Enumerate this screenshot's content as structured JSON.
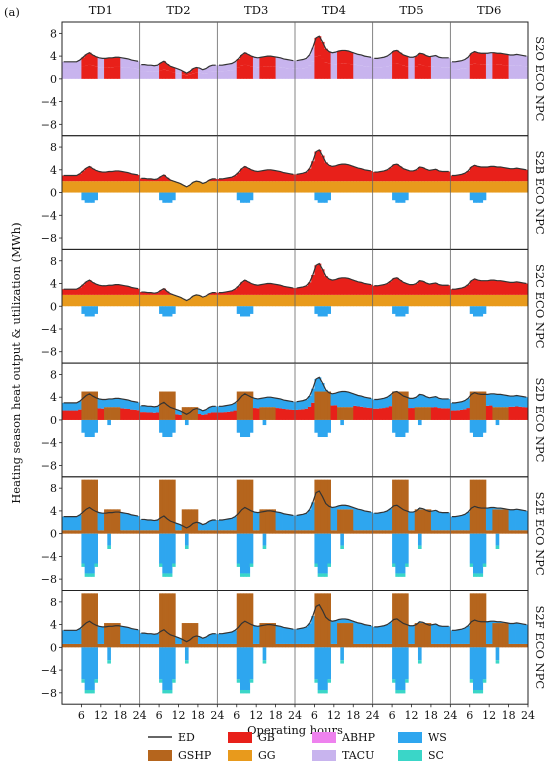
{
  "chart_data": {
    "type": "area",
    "panel_label": "(a)",
    "ylabel": "Heating season heat output & utilization (MWh)",
    "xlabel": "Operating hours",
    "day_labels": [
      "TD1",
      "TD2",
      "TD3",
      "TD4",
      "TD5",
      "TD6"
    ],
    "row_labels": [
      "S2O ECO NPC",
      "S2B ECO NPC",
      "S2C ECO NPC",
      "S2D ECO NPC",
      "S2E ECO NPC",
      "S2F ECO NPC"
    ],
    "x_ticks": [
      "6",
      "12",
      "18",
      "24",
      "6",
      "12",
      "18",
      "24",
      "6",
      "12",
      "18",
      "24",
      "6",
      "12",
      "18",
      "24",
      "6",
      "12",
      "18",
      "24",
      "6",
      "12",
      "18",
      "24"
    ],
    "y_ticks": [
      "8",
      "4",
      "0",
      "−4",
      "−8"
    ],
    "ylim": [
      -10,
      10
    ],
    "hours_per_day": 24,
    "legend": [
      {
        "key": "ED",
        "label": "ED",
        "color": "#333333",
        "kind": "line"
      },
      {
        "key": "GSHP",
        "label": "GSHP",
        "color": "#b5651d",
        "kind": "box"
      },
      {
        "key": "GB",
        "label": "GB",
        "color": "#e8201a",
        "kind": "box"
      },
      {
        "key": "GG",
        "label": "GG",
        "color": "#e89a1c",
        "kind": "box"
      },
      {
        "key": "ABHP",
        "label": "ABHP",
        "color": "#ee82ee",
        "kind": "box"
      },
      {
        "key": "TACU",
        "label": "TACU",
        "color": "#c8b4ee",
        "kind": "box"
      },
      {
        "key": "WS",
        "label": "WS",
        "color": "#2ea6ef",
        "kind": "box"
      },
      {
        "key": "SC",
        "label": "SC",
        "color": "#3ad6c8",
        "kind": "box"
      }
    ],
    "ed_by_day": [
      [
        3,
        3,
        3,
        3,
        3,
        3.3,
        3.8,
        4.3,
        4.6,
        4.2,
        3.9,
        3.7,
        3.6,
        3.6,
        3.7,
        3.7,
        3.8,
        3.8,
        3.7,
        3.6,
        3.5,
        3.3,
        3.2,
        3.1
      ],
      [
        2.5,
        2.5,
        2.4,
        2.4,
        2.3,
        2.4,
        2.8,
        3.1,
        2.6,
        2.2,
        2.0,
        1.8,
        1.6,
        1.3,
        1.0,
        1.3,
        1.8,
        2.0,
        1.9,
        1.6,
        1.8,
        2.2,
        2.4,
        2.4
      ],
      [
        2.4,
        2.4,
        2.5,
        2.6,
        2.7,
        3.0,
        3.5,
        4.2,
        4.6,
        4.3,
        4.0,
        3.8,
        3.7,
        3.8,
        3.9,
        4.0,
        4.0,
        3.9,
        3.8,
        3.7,
        3.5,
        3.4,
        3.3,
        3.2
      ],
      [
        3.2,
        3.3,
        3.4,
        3.6,
        4.2,
        5.5,
        7.2,
        7.5,
        6.5,
        5.3,
        4.8,
        4.6,
        4.7,
        4.9,
        5.0,
        5.0,
        4.9,
        4.7,
        4.5,
        4.3,
        4.2,
        4.0,
        3.9,
        3.8
      ],
      [
        3.6,
        3.6,
        3.7,
        3.8,
        4.0,
        4.4,
        4.9,
        5.0,
        4.6,
        4.2,
        4.0,
        3.8,
        3.8,
        4.0,
        4.5,
        4.4,
        4.1,
        3.9,
        4.0,
        4.1,
        3.8,
        3.7,
        3.7,
        3.7
      ],
      [
        3.0,
        3.0,
        3.1,
        3.2,
        3.4,
        3.8,
        4.5,
        4.8,
        4.6,
        4.5,
        4.5,
        4.5,
        4.6,
        4.6,
        4.5,
        4.5,
        4.4,
        4.3,
        4.2,
        4.2,
        4.3,
        4.2,
        4.1,
        4.0
      ]
    ],
    "row_profiles": [
      {
        "name": "S2O",
        "night_low": "TACU",
        "night_top": "TACU",
        "day_low": "GB",
        "day_top": "GB",
        "dip": []
      },
      {
        "name": "S2B",
        "night_low": "GG",
        "night_top": "GB",
        "day_low": "GG",
        "day_top": "GB",
        "dip": [
          "WS"
        ]
      },
      {
        "name": "S2C",
        "night_low": "GG",
        "night_top": "GB",
        "day_low": "GG",
        "day_top": "GB",
        "dip": [
          "WS"
        ]
      },
      {
        "name": "S2D",
        "night_low": "GB",
        "night_top": "WS",
        "day_low": "GSHP",
        "day_top": "WS",
        "dip": [
          "WS"
        ]
      },
      {
        "name": "S2E",
        "night_low": "GSHP",
        "night_top": "WS",
        "day_low": "GSHP",
        "day_top": "WS",
        "dip": [
          "WS",
          "SC"
        ]
      },
      {
        "name": "S2F",
        "night_low": "GSHP",
        "night_top": "WS",
        "day_low": "GSHP",
        "day_top": "WS",
        "dip": [
          "WS",
          "SC"
        ]
      }
    ],
    "gshp_peak_mwh": [
      0,
      0,
      0,
      5,
      9.5,
      9.5
    ],
    "ws_discharge_min_mwh": [
      0,
      -1.8,
      -1.8,
      -3,
      -7,
      -7.5
    ]
  }
}
